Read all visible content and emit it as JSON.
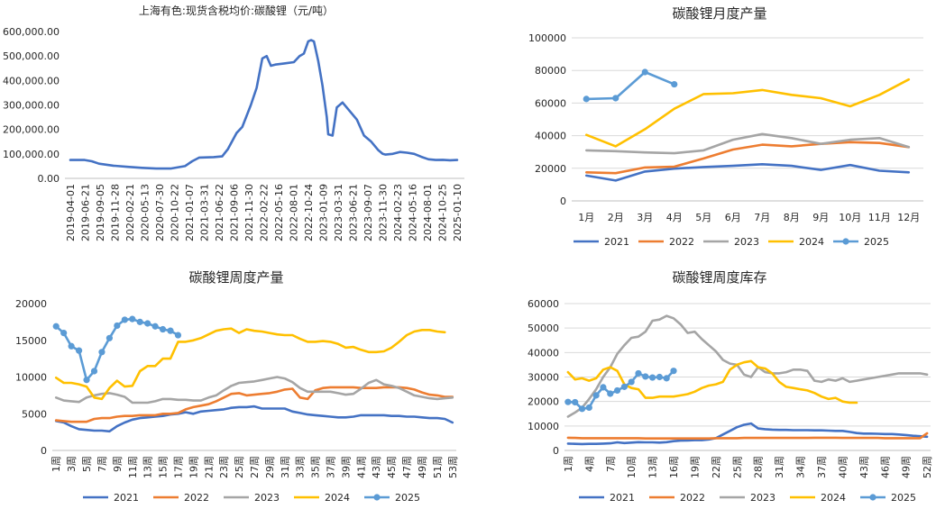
{
  "palette": {
    "2021": "#4472c4",
    "2022": "#ed7d31",
    "2023": "#a5a5a5",
    "2024": "#ffc000",
    "2025": "#5b9bd5"
  },
  "chart_data": [
    {
      "id": "price",
      "type": "line",
      "title": "上海有色:现货含税均价:碳酸锂（元/吨）",
      "ylim": [
        0,
        600000
      ],
      "y_ticks": [
        "0.00",
        "100,000.00",
        "200,000.00",
        "300,000.00",
        "400,000.00",
        "500,000.00",
        "600,000.00"
      ],
      "x_ticks": [
        "2019-04-01",
        "2019-06-21",
        "2019-09-05",
        "2019-11-28",
        "2020-02-21",
        "2020-05-13",
        "2020-07-30",
        "2020-10-22",
        "2021-01-07",
        "2021-03-31",
        "2021-06-22",
        "2021-09-06",
        "2021-11-30",
        "2022-02-22",
        "2022-05-16",
        "2022-08-01",
        "2022-10-24",
        "2023-01-09",
        "2023-03-31",
        "2023-06-21",
        "2023-09-07",
        "2023-11-30",
        "2024-02-23",
        "2024-05-16",
        "2024-08-01",
        "2024-10-25",
        "2025-01-10"
      ],
      "grid": false,
      "series": [
        {
          "color": "#4472c4",
          "x": [
            0,
            1,
            1.5,
            2,
            3,
            4,
            5,
            6,
            7,
            8,
            8.5,
            9,
            10,
            10.6,
            11,
            11.6,
            12,
            12.6,
            13,
            13.4,
            13.7,
            14,
            14.3,
            15,
            15.6,
            16,
            16.3,
            16.6,
            16.8,
            17,
            17.3,
            17.6,
            17.9,
            18,
            18.3,
            18.6,
            19,
            20,
            20.5,
            21,
            21.5,
            21.8,
            22,
            22.5,
            23,
            23.5,
            24,
            24.5,
            25,
            25.5,
            26,
            26.5,
            27
          ],
          "y": [
            75000,
            75000,
            70000,
            60000,
            52000,
            47000,
            43000,
            40000,
            40000,
            50000,
            70000,
            85000,
            87000,
            90000,
            120000,
            185000,
            210000,
            300000,
            370000,
            490000,
            500000,
            460000,
            465000,
            470000,
            475000,
            500000,
            510000,
            560000,
            565000,
            560000,
            480000,
            380000,
            250000,
            180000,
            175000,
            290000,
            310000,
            240000,
            175000,
            150000,
            115000,
            100000,
            97000,
            100000,
            108000,
            105000,
            100000,
            88000,
            78000,
            75000,
            76000,
            74000,
            75000
          ]
        }
      ]
    },
    {
      "id": "monthly_output",
      "type": "line",
      "title": "碳酸锂月度产量",
      "ylim": [
        0,
        100000
      ],
      "y_ticks": [
        "0",
        "20000",
        "40000",
        "60000",
        "80000",
        "100000"
      ],
      "categories": [
        "1月",
        "2月",
        "3月",
        "4月",
        "5月",
        "6月",
        "7月",
        "8月",
        "9月",
        "10月",
        "11月",
        "12月"
      ],
      "grid": true,
      "legend_position": "bottom",
      "series": [
        {
          "name": "2021",
          "color": "#4472c4",
          "values": [
            15500,
            12500,
            18000,
            19800,
            20800,
            21500,
            22500,
            21500,
            19000,
            22000,
            18500,
            17500
          ]
        },
        {
          "name": "2022",
          "color": "#ed7d31",
          "values": [
            17500,
            17000,
            20500,
            21000,
            26000,
            31500,
            34500,
            33500,
            35000,
            36000,
            35500,
            33000
          ]
        },
        {
          "name": "2023",
          "color": "#a5a5a5",
          "values": [
            31000,
            30500,
            29700,
            29200,
            31000,
            37500,
            41000,
            38500,
            35000,
            37500,
            38500,
            33000
          ]
        },
        {
          "name": "2024",
          "color": "#ffc000",
          "values": [
            40500,
            33500,
            44000,
            56500,
            65500,
            66000,
            68000,
            65000,
            63000,
            58000,
            65000,
            74500
          ]
        },
        {
          "name": "2025",
          "color": "#5b9bd5",
          "marker": "circle",
          "values": [
            62500,
            63000,
            79000,
            71500,
            null,
            null,
            null,
            null,
            null,
            null,
            null,
            null
          ]
        }
      ]
    },
    {
      "id": "weekly_output",
      "type": "line",
      "title": "碳酸锂周度产量",
      "ylim": [
        0,
        20000
      ],
      "y_ticks": [
        "0",
        "5000",
        "10000",
        "15000",
        "20000"
      ],
      "x_ticks": [
        "1周",
        "3周",
        "5周",
        "7周",
        "9周",
        "11周",
        "13周",
        "15周",
        "17周",
        "19周",
        "21周",
        "23周",
        "25周",
        "27周",
        "29周",
        "31周",
        "33周",
        "35周",
        "37周",
        "39周",
        "41周",
        "43周",
        "45周",
        "47周",
        "49周",
        "51周",
        "53周"
      ],
      "x_count": 53,
      "grid": false,
      "legend_position": "bottom",
      "series": [
        {
          "name": "2021",
          "color": "#4472c4",
          "values": [
            4000,
            3800,
            3300,
            2900,
            2800,
            2700,
            2700,
            2600,
            3300,
            3800,
            4200,
            4400,
            4500,
            4600,
            4700,
            4900,
            5000,
            5200,
            5000,
            5300,
            5400,
            5500,
            5600,
            5800,
            5900,
            5900,
            6000,
            5700,
            5700,
            5700,
            5700,
            5300,
            5100,
            4900,
            4800,
            4700,
            4600,
            4500,
            4500,
            4600,
            4800,
            4800,
            4800,
            4800,
            4700,
            4700,
            4600,
            4600,
            4500,
            4400,
            4400,
            4300,
            3800
          ]
        },
        {
          "name": "2022",
          "color": "#ed7d31",
          "values": [
            4100,
            4000,
            3900,
            3900,
            3900,
            4300,
            4400,
            4400,
            4600,
            4700,
            4700,
            4800,
            4800,
            4800,
            5000,
            5000,
            5100,
            5600,
            5900,
            6100,
            6300,
            6700,
            7200,
            7700,
            7800,
            7500,
            7600,
            7700,
            7800,
            8000,
            8300,
            8400,
            7200,
            7000,
            8200,
            8500,
            8600,
            8600,
            8600,
            8600,
            8500,
            8500,
            8500,
            8600,
            8600,
            8600,
            8500,
            8300,
            7900,
            7600,
            7500,
            7300,
            7300
          ]
        },
        {
          "name": "2023",
          "color": "#a5a5a5",
          "values": [
            7200,
            6800,
            6700,
            6600,
            7200,
            7500,
            7700,
            7800,
            7600,
            7300,
            6500,
            6500,
            6500,
            6700,
            7000,
            7000,
            6900,
            6900,
            6800,
            6800,
            7200,
            7500,
            8200,
            8800,
            9200,
            9300,
            9400,
            9600,
            9800,
            10000,
            9800,
            9300,
            8500,
            8000,
            8000,
            8000,
            8000,
            7800,
            7600,
            7700,
            8400,
            9200,
            9600,
            9000,
            8800,
            8500,
            8000,
            7500,
            7300,
            7100,
            7000,
            7100,
            7200
          ]
        },
        {
          "name": "2024",
          "color": "#ffc000",
          "values": [
            9900,
            9200,
            9200,
            9000,
            8700,
            7200,
            7000,
            8500,
            9500,
            8700,
            8800,
            10800,
            11500,
            11500,
            12500,
            12500,
            14800,
            14800,
            15000,
            15300,
            15800,
            16300,
            16500,
            16600,
            16000,
            16500,
            16300,
            16200,
            16000,
            15800,
            15700,
            15700,
            15200,
            14800,
            14800,
            14900,
            14800,
            14500,
            14000,
            14100,
            13700,
            13400,
            13400,
            13500,
            14000,
            14800,
            15700,
            16200,
            16400,
            16400,
            16200,
            16100,
            null
          ]
        },
        {
          "name": "2025",
          "color": "#5b9bd5",
          "marker": "circle",
          "values": [
            16900,
            16000,
            14200,
            13600,
            9600,
            10800,
            13400,
            15300,
            17000,
            17800,
            17900,
            17500,
            17300,
            16900,
            16500,
            16300,
            15700,
            null,
            null,
            null,
            null,
            null,
            null,
            null,
            null,
            null,
            null,
            null,
            null,
            null,
            null,
            null,
            null,
            null,
            null,
            null,
            null,
            null,
            null,
            null,
            null,
            null,
            null,
            null,
            null,
            null,
            null,
            null,
            null,
            null,
            null,
            null,
            null
          ]
        }
      ]
    },
    {
      "id": "weekly_inventory",
      "type": "line",
      "title": "碳酸锂周度库存",
      "ylim": [
        0,
        60000
      ],
      "y_ticks": [
        "0",
        "10000",
        "20000",
        "30000",
        "40000",
        "50000",
        "60000"
      ],
      "x_ticks": [
        "1周",
        "4周",
        "7周",
        "10周",
        "13周",
        "16周",
        "19周",
        "22周",
        "25周",
        "28周",
        "31周",
        "34周",
        "37周",
        "40周",
        "43周",
        "46周",
        "49周",
        "52周"
      ],
      "x_count": 52,
      "grid": true,
      "legend_position": "bottom",
      "series": [
        {
          "name": "2021",
          "color": "#4472c4",
          "values": [
            2800,
            2700,
            2600,
            2700,
            2700,
            2800,
            2900,
            3300,
            3000,
            3200,
            3400,
            3300,
            3300,
            3200,
            3400,
            3800,
            4000,
            4100,
            4200,
            4200,
            4500,
            5000,
            6500,
            8000,
            9500,
            10500,
            11000,
            9000,
            8700,
            8500,
            8400,
            8400,
            8300,
            8300,
            8300,
            8200,
            8200,
            8100,
            8000,
            8000,
            7600,
            7100,
            6900,
            6900,
            6800,
            6700,
            6700,
            6500,
            6300,
            6000,
            5800,
            5600
          ]
        },
        {
          "name": "2022",
          "color": "#ed7d31",
          "values": [
            5200,
            5100,
            5000,
            5000,
            5000,
            5000,
            5000,
            5000,
            5000,
            5000,
            5000,
            4900,
            4900,
            4900,
            4900,
            4900,
            4900,
            4900,
            4900,
            4900,
            4900,
            5000,
            5000,
            5000,
            5000,
            5100,
            5100,
            5100,
            5100,
            5100,
            5100,
            5100,
            5100,
            5100,
            5100,
            5200,
            5200,
            5200,
            5200,
            5100,
            5100,
            5100,
            5100,
            5100,
            5100,
            5000,
            5000,
            5000,
            5000,
            5000,
            5000,
            7000
          ]
        },
        {
          "name": "2023",
          "color": "#a5a5a5",
          "values": [
            13800,
            15500,
            17500,
            21000,
            25000,
            30000,
            34000,
            39500,
            43000,
            46000,
            46500,
            48500,
            53000,
            53500,
            55000,
            54000,
            51500,
            48000,
            48500,
            45500,
            43000,
            40500,
            37000,
            35500,
            35000,
            31000,
            30000,
            34000,
            32000,
            31500,
            31500,
            32000,
            33000,
            33000,
            32500,
            28500,
            28000,
            29000,
            28500,
            29500,
            28000,
            28500,
            29000,
            29500,
            30000,
            30500,
            31000,
            31500,
            31500,
            31500,
            31500,
            31000
          ]
        },
        {
          "name": "2024",
          "color": "#ffc000",
          "values": [
            32000,
            29000,
            29500,
            28500,
            29500,
            33000,
            34000,
            32500,
            27000,
            25500,
            25000,
            21500,
            21500,
            22000,
            22000,
            22000,
            22500,
            23000,
            24000,
            25500,
            26500,
            27000,
            28000,
            33000,
            35000,
            36000,
            36500,
            34000,
            33500,
            31500,
            28000,
            26000,
            25500,
            25000,
            24500,
            23500,
            22000,
            21000,
            21500,
            20000,
            19500,
            19500,
            null,
            null,
            null,
            null,
            null,
            null,
            null,
            null,
            null,
            null
          ]
        },
        {
          "name": "2025",
          "color": "#5b9bd5",
          "marker": "circle",
          "values": [
            19800,
            19700,
            17000,
            17500,
            22500,
            25800,
            23200,
            24500,
            26000,
            28000,
            31500,
            30200,
            29800,
            30000,
            29500,
            32500,
            null,
            null,
            null,
            null,
            null,
            null,
            null,
            null,
            null,
            null,
            null,
            null,
            null,
            null,
            null,
            null,
            null,
            null,
            null,
            null,
            null,
            null,
            null,
            null,
            null,
            null,
            null,
            null,
            null,
            null,
            null,
            null,
            null,
            null,
            null,
            null
          ]
        }
      ]
    }
  ]
}
